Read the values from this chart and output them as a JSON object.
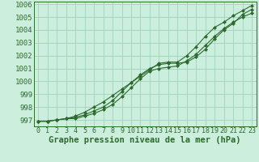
{
  "hours": [
    0,
    1,
    2,
    3,
    4,
    5,
    6,
    7,
    8,
    9,
    10,
    11,
    12,
    13,
    14,
    15,
    16,
    17,
    18,
    19,
    20,
    21,
    22,
    23
  ],
  "line1": [
    996.9,
    996.9,
    997.0,
    997.1,
    997.1,
    997.3,
    997.5,
    997.8,
    998.2,
    998.8,
    999.5,
    1000.2,
    1000.8,
    1001.0,
    1001.1,
    1001.2,
    1001.6,
    1002.1,
    1002.8,
    1003.5,
    1004.1,
    1004.6,
    1005.0,
    1005.3
  ],
  "line2": [
    996.9,
    996.9,
    997.0,
    997.1,
    997.2,
    997.4,
    997.7,
    998.0,
    998.5,
    999.2,
    999.9,
    1000.5,
    1001.0,
    1001.3,
    1001.4,
    1001.4,
    1001.5,
    1001.9,
    1002.5,
    1003.3,
    1004.0,
    1004.5,
    1005.2,
    1005.6
  ],
  "line3": [
    996.9,
    996.9,
    997.0,
    997.1,
    997.3,
    997.6,
    998.0,
    998.4,
    998.9,
    999.4,
    999.9,
    1000.4,
    1000.9,
    1001.4,
    1001.5,
    1001.5,
    1002.0,
    1002.7,
    1003.5,
    1004.2,
    1004.6,
    1005.1,
    1005.5,
    1005.9
  ],
  "line_color": "#2d6a2d",
  "bg_color": "#cceedd",
  "grid_color": "#99ccbb",
  "xlabel": "Graphe pression niveau de la mer (hPa)",
  "ylim": [
    996.5,
    1006.2
  ],
  "ytick_min": 997,
  "ytick_max": 1006,
  "xticks": [
    0,
    1,
    2,
    3,
    4,
    5,
    6,
    7,
    8,
    9,
    10,
    11,
    12,
    13,
    14,
    15,
    16,
    17,
    18,
    19,
    20,
    21,
    22,
    23
  ],
  "xlabel_fontsize": 7.5,
  "tick_fontsize": 6.5
}
